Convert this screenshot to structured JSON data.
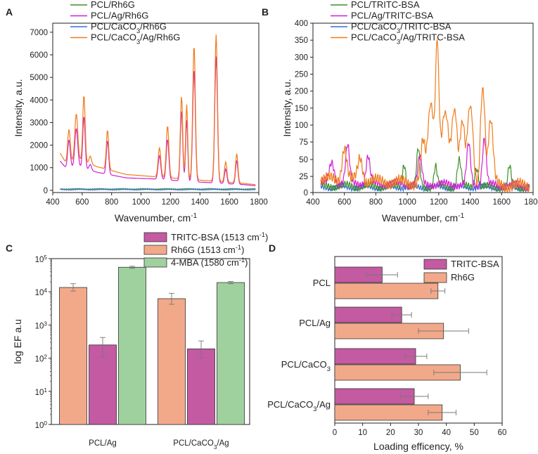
{
  "colors": {
    "green": "#3f8f2a",
    "magenta": "#d21fd2",
    "blue": "#2f6ee0",
    "orange": "#ef7c1c",
    "bar_purple": "#c45aa2",
    "bar_salmon": "#f2a98a",
    "bar_green": "#9fd19f",
    "err": "#777777"
  },
  "chart_data": [
    {
      "panel": "A",
      "type": "line",
      "xlabel": "Wavenumber, cm",
      "xlabel_sup": "-1",
      "ylabel": "Intensity, a.u.",
      "xlim": [
        400,
        1800
      ],
      "ylim": [
        -100,
        7400
      ],
      "xticks": [
        "400",
        "600",
        "800",
        "1000",
        "1200",
        "1400",
        "1600",
        "1800"
      ],
      "yticks": [
        "0",
        "1000",
        "2000",
        "3000",
        "4000",
        "5000",
        "6000",
        "7000"
      ],
      "legend": [
        {
          "label": "PCL/Rh6G",
          "color_key": "green"
        },
        {
          "label": "PCL/Ag/Rh6G",
          "color_key": "magenta"
        },
        {
          "label": "PCL/CaCO3/Rh6G",
          "color_key": "blue",
          "parts": [
            {
              "t": "PCL/CaCO"
            },
            {
              "t": "3",
              "sub": true
            },
            {
              "t": "/Rh6G"
            }
          ]
        },
        {
          "label": "PCL/CaCO3/Ag/Rh6G",
          "color_key": "orange",
          "parts": [
            {
              "t": "PCL/CaCO"
            },
            {
              "t": "3",
              "sub": true
            },
            {
              "t": "/Ag/Rh6G"
            }
          ]
        }
      ],
      "series": [
        {
          "name": "PCL/Rh6G",
          "color_key": "green",
          "mode": "flat",
          "base": 60
        },
        {
          "name": "PCL/CaCO3/Rh6G",
          "color_key": "blue",
          "mode": "flat",
          "base": 30
        },
        {
          "name": "PCL/Ag/Rh6G",
          "color_key": "magenta",
          "mode": "peaks",
          "baseline": [
            [
              450,
              1300
            ],
            [
              500,
              900
            ],
            [
              560,
              1100
            ],
            [
              700,
              800
            ],
            [
              900,
              550
            ],
            [
              1100,
              500
            ],
            [
              1300,
              400
            ],
            [
              1700,
              250
            ],
            [
              1780,
              200
            ]
          ],
          "peaks": [
            [
              510,
              1300,
              9
            ],
            [
              560,
              1650,
              10
            ],
            [
              612,
              2300,
              8
            ],
            [
              655,
              250,
              8
            ],
            [
              772,
              1500,
              8
            ],
            [
              1125,
              1050,
              9
            ],
            [
              1180,
              1800,
              9
            ],
            [
              1275,
              3100,
              8
            ],
            [
              1310,
              2700,
              7
            ],
            [
              1360,
              5000,
              9
            ],
            [
              1510,
              5600,
              9
            ],
            [
              1575,
              650,
              8
            ],
            [
              1650,
              1050,
              8
            ]
          ]
        },
        {
          "name": "PCL/CaCO3/Ag/Rh6G",
          "color_key": "orange",
          "mode": "peaks",
          "baseline": [
            [
              450,
              1650
            ],
            [
              500,
              1100
            ],
            [
              560,
              1400
            ],
            [
              700,
              1050
            ],
            [
              900,
              700
            ],
            [
              1100,
              600
            ],
            [
              1300,
              500
            ],
            [
              1700,
              300
            ],
            [
              1780,
              250
            ]
          ],
          "peaks": [
            [
              510,
              1550,
              9
            ],
            [
              560,
              2000,
              10
            ],
            [
              612,
              2950,
              8
            ],
            [
              655,
              350,
              8
            ],
            [
              772,
              1750,
              8
            ],
            [
              1125,
              1300,
              9
            ],
            [
              1180,
              2300,
              9
            ],
            [
              1275,
              3650,
              8
            ],
            [
              1310,
              3300,
              7
            ],
            [
              1360,
              5950,
              9
            ],
            [
              1510,
              6500,
              9
            ],
            [
              1575,
              900,
              8
            ],
            [
              1650,
              1300,
              8
            ]
          ]
        }
      ]
    },
    {
      "panel": "B",
      "type": "line",
      "xlabel": "Wavenumber, cm",
      "xlabel_sup": "-1",
      "ylabel": "Intensity, a.u.",
      "xlim": [
        400,
        1800
      ],
      "ylim": [
        0,
        400
      ],
      "xticks": [
        "400",
        "600",
        "800",
        "1000",
        "1200",
        "1400",
        "1600",
        "1800"
      ],
      "yticks": [
        "0",
        "25",
        "50",
        "75",
        "100",
        "150",
        "200",
        "250",
        "300",
        "350",
        "400"
      ],
      "legend": [
        {
          "label": "PCL/TRITC-BSA",
          "color_key": "green"
        },
        {
          "label": "PCL/Ag/TRITC-BSA",
          "color_key": "magenta"
        },
        {
          "label": "PCL/CaCO3/TRITC-BSA",
          "color_key": "blue",
          "parts": [
            {
              "t": "PCL/CaCO"
            },
            {
              "t": "3",
              "sub": true
            },
            {
              "t": "/TRITC-BSA"
            }
          ]
        },
        {
          "label": "PCL/CaCO3/Ag/TRITC-BSA",
          "color_key": "orange",
          "parts": [
            {
              "t": "PCL/CaCO"
            },
            {
              "t": "3",
              "sub": true
            },
            {
              "t": "/Ag/TRITC-BSA"
            }
          ]
        }
      ],
      "series": [
        {
          "name": "PCL/CaCO3/TRITC-BSA",
          "color_key": "blue",
          "mode": "noise",
          "base": 8,
          "amp": 6
        },
        {
          "name": "PCL/TRITC-BSA",
          "color_key": "green",
          "mode": "peaks",
          "noise": 8,
          "baseline": [
            [
              450,
              10
            ],
            [
              1780,
              8
            ]
          ],
          "peaks": [
            [
              980,
              35,
              10
            ],
            [
              1070,
              55,
              10
            ],
            [
              1180,
              30,
              10
            ],
            [
              1330,
              40,
              12
            ],
            [
              1440,
              30,
              12
            ],
            [
              1650,
              30,
              10
            ]
          ]
        },
        {
          "name": "PCL/Ag/TRITC-BSA",
          "color_key": "magenta",
          "mode": "peaks",
          "noise": 8,
          "baseline": [
            [
              450,
              15
            ],
            [
              1780,
              10
            ]
          ],
          "peaks": [
            [
              520,
              30,
              15
            ],
            [
              620,
              55,
              12
            ],
            [
              750,
              40,
              12
            ],
            [
              1080,
              40,
              12
            ],
            [
              1390,
              60,
              12
            ],
            [
              1490,
              70,
              12
            ]
          ]
        },
        {
          "name": "PCL/CaCO3/Ag/TRITC-BSA",
          "color_key": "orange",
          "mode": "peaks",
          "noise": 12,
          "baseline": [
            [
              450,
              20
            ],
            [
              1000,
              15
            ],
            [
              1780,
              10
            ]
          ],
          "peaks": [
            [
              600,
              50,
              15
            ],
            [
              700,
              35,
              15
            ],
            [
              1100,
              60,
              15
            ],
            [
              1150,
              150,
              15
            ],
            [
              1190,
              340,
              10
            ],
            [
              1240,
              120,
              20
            ],
            [
              1300,
              130,
              15
            ],
            [
              1350,
              100,
              15
            ],
            [
              1400,
              140,
              15
            ],
            [
              1480,
              200,
              12
            ],
            [
              1530,
              100,
              15
            ]
          ]
        }
      ]
    },
    {
      "panel": "C",
      "type": "bar",
      "yscale": "log",
      "ylabel": "log EF a.u",
      "ylim": [
        1,
        100000
      ],
      "yticks": [
        {
          "base": "10",
          "exp": "0"
        },
        {
          "base": "10",
          "exp": "1"
        },
        {
          "base": "10",
          "exp": "2"
        },
        {
          "base": "10",
          "exp": "3"
        },
        {
          "base": "10",
          "exp": "4"
        },
        {
          "base": "10",
          "exp": "5"
        }
      ],
      "categories": [
        "PCL/Ag",
        "PCL/CaCO3/Ag"
      ],
      "category_parts": [
        [
          {
            "t": "PCL/Ag"
          }
        ],
        [
          {
            "t": "PCL/CaCO"
          },
          {
            "t": "3",
            "sub": true
          },
          {
            "t": "/Ag"
          }
        ]
      ],
      "legend": [
        {
          "label": "TRITC-BSA (1513 cm-1)",
          "color_key": "bar_purple",
          "parts": [
            {
              "t": "TRITC-BSA (1513 cm"
            },
            {
              "t": "-1",
              "sup": true
            },
            {
              "t": ")"
            }
          ]
        },
        {
          "label": "Rh6G (1513 cm-1)",
          "color_key": "bar_salmon",
          "parts": [
            {
              "t": "Rh6G (1513 cm"
            },
            {
              "t": "-1",
              "sup": true
            },
            {
              "t": ")"
            }
          ]
        },
        {
          "label": "4-MBA (1580 cm-1)",
          "color_key": "bar_green",
          "parts": [
            {
              "t": "4-MBA (1580 cm"
            },
            {
              "t": "-1",
              "sup": true
            },
            {
              "t": ")"
            }
          ]
        }
      ],
      "draw_order": [
        "Rh6G",
        "TRITC-BSA",
        "4-MBA"
      ],
      "series": [
        {
          "name": "TRITC-BSA",
          "color_key": "bar_purple",
          "values": [
            250,
            190
          ],
          "err_low": [
            110,
            100
          ],
          "err_high": [
            420,
            330
          ]
        },
        {
          "name": "Rh6G",
          "color_key": "bar_salmon",
          "values": [
            13500,
            6200
          ],
          "err_low": [
            10500,
            4200
          ],
          "err_high": [
            17500,
            9000
          ]
        },
        {
          "name": "4-MBA",
          "color_key": "bar_green",
          "values": [
            55000,
            19000
          ],
          "err_low": [
            51000,
            17500
          ],
          "err_high": [
            59000,
            20500
          ]
        }
      ]
    },
    {
      "panel": "D",
      "type": "bar",
      "orientation": "horizontal",
      "xlabel": "Loading efficency, %",
      "xlim": [
        0,
        60
      ],
      "xticks": [
        "0",
        "10",
        "20",
        "30",
        "40",
        "50",
        "60"
      ],
      "categories": [
        "PCL",
        "PCL/Ag",
        "PCL/CaCO3",
        "PCL/CaCO3/Ag"
      ],
      "category_parts": [
        [
          {
            "t": "PCL"
          }
        ],
        [
          {
            "t": "PCL/Ag"
          }
        ],
        [
          {
            "t": "PCL/CaCO"
          },
          {
            "t": "3",
            "sub": true
          }
        ],
        [
          {
            "t": "PCL/CaCO"
          },
          {
            "t": "3",
            "sub": true
          },
          {
            "t": "/Ag"
          }
        ]
      ],
      "legend": [
        {
          "label": "TRITC-BSA",
          "color_key": "bar_purple"
        },
        {
          "label": "Rh6G",
          "color_key": "bar_salmon"
        }
      ],
      "series": [
        {
          "name": "TRITC-BSA",
          "color_key": "bar_purple",
          "values": [
            17,
            24,
            29,
            28.5
          ],
          "err": [
            5.5,
            3.5,
            4,
            5
          ]
        },
        {
          "name": "Rh6G",
          "color_key": "bar_salmon",
          "values": [
            37,
            39,
            45,
            38.5
          ],
          "err": [
            2.5,
            9,
            9.5,
            5
          ]
        }
      ]
    }
  ]
}
